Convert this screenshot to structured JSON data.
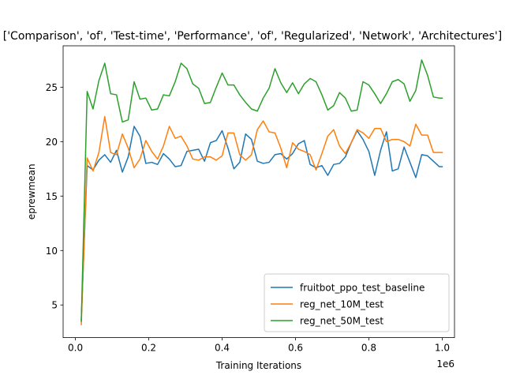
{
  "chart_data": {
    "type": "line",
    "title": "['Comparison', 'of', 'Test-time', 'Performance', 'of', 'Regularized', 'Network', 'Architectures']",
    "xlabel": "Training Iterations",
    "ylabel": "eprewmean",
    "x_offset_label": "1e6",
    "xlim": [
      -0.0335,
      1.0335
    ],
    "ylim": [
      2.0,
      28.8
    ],
    "x_ticks": [
      0.0,
      0.2,
      0.4,
      0.6,
      0.8,
      1.0
    ],
    "x_tick_labels": [
      "0.0",
      "0.2",
      "0.4",
      "0.6",
      "0.8",
      "1.0"
    ],
    "y_ticks": [
      5,
      10,
      15,
      20,
      25
    ],
    "y_tick_labels": [
      "5",
      "10",
      "15",
      "20",
      "25"
    ],
    "grid": false,
    "legend_position": "lower-right",
    "x": [
      0.016,
      0.032,
      0.048,
      0.064,
      0.08,
      0.096,
      0.112,
      0.128,
      0.144,
      0.16,
      0.176,
      0.192,
      0.208,
      0.224,
      0.24,
      0.256,
      0.272,
      0.288,
      0.304,
      0.32,
      0.336,
      0.352,
      0.368,
      0.384,
      0.4,
      0.416,
      0.432,
      0.448,
      0.464,
      0.48,
      0.496,
      0.512,
      0.528,
      0.544,
      0.56,
      0.576,
      0.592,
      0.608,
      0.624,
      0.64,
      0.656,
      0.672,
      0.688,
      0.704,
      0.72,
      0.736,
      0.752,
      0.768,
      0.784,
      0.8,
      0.816,
      0.832,
      0.848,
      0.864,
      0.88,
      0.896,
      0.912,
      0.928,
      0.944,
      0.96,
      0.976,
      0.992,
      1.0
    ],
    "series": [
      {
        "name": "fruitbot_ppo_test_baseline",
        "color": "#1f77b4",
        "values": [
          3.6,
          17.8,
          17.4,
          18.3,
          18.8,
          18.1,
          19.2,
          17.2,
          18.6,
          21.4,
          20.5,
          18.0,
          18.1,
          17.9,
          18.9,
          18.4,
          17.7,
          17.8,
          19.1,
          19.2,
          19.3,
          18.2,
          19.9,
          20.1,
          21.0,
          19.4,
          17.5,
          18.1,
          20.7,
          20.2,
          18.2,
          18.0,
          18.1,
          18.8,
          18.9,
          18.4,
          18.9,
          19.8,
          20.1,
          17.9,
          17.6,
          17.8,
          16.9,
          17.9,
          18.0,
          18.6,
          19.9,
          21.0,
          20.2,
          19.1,
          16.9,
          19.2,
          20.9,
          17.3,
          17.5,
          19.5,
          18.1,
          16.7,
          18.8,
          18.7,
          18.2,
          17.7,
          17.7
        ]
      },
      {
        "name": "reg_net_10M_test",
        "color": "#ff7f0e",
        "values": [
          3.2,
          18.5,
          17.3,
          19.0,
          22.3,
          19.0,
          18.8,
          20.7,
          19.4,
          17.6,
          18.4,
          20.1,
          19.1,
          18.4,
          19.6,
          21.4,
          20.3,
          20.5,
          19.6,
          18.4,
          18.3,
          18.6,
          18.6,
          18.3,
          18.7,
          20.8,
          20.8,
          18.8,
          18.3,
          18.8,
          21.1,
          21.9,
          20.9,
          20.8,
          19.4,
          17.6,
          19.9,
          19.3,
          19.1,
          18.8,
          17.4,
          18.9,
          20.5,
          21.1,
          19.6,
          18.9,
          19.9,
          21.1,
          20.8,
          20.3,
          21.2,
          21.2,
          20.0,
          20.2,
          20.2,
          20.0,
          19.6,
          21.6,
          20.6,
          20.6,
          19.0,
          19.0,
          19.0
        ]
      },
      {
        "name": "reg_net_50M_test",
        "color": "#2ca02c",
        "values": [
          3.5,
          24.6,
          23.0,
          25.6,
          27.2,
          24.4,
          24.3,
          21.8,
          22.0,
          25.5,
          23.9,
          24.0,
          22.9,
          23.0,
          24.3,
          24.2,
          25.5,
          27.2,
          26.7,
          25.3,
          24.9,
          23.5,
          23.6,
          25.0,
          26.3,
          25.2,
          25.2,
          24.3,
          23.6,
          23.0,
          22.8,
          24.0,
          24.9,
          26.7,
          25.4,
          24.5,
          25.4,
          24.4,
          25.3,
          25.8,
          25.5,
          24.3,
          22.9,
          23.3,
          24.5,
          24.0,
          22.8,
          22.9,
          25.5,
          25.2,
          24.4,
          23.5,
          24.4,
          25.5,
          25.7,
          25.3,
          23.7,
          24.7,
          27.5,
          26.1,
          24.1,
          24.0,
          24.0
        ]
      }
    ]
  }
}
